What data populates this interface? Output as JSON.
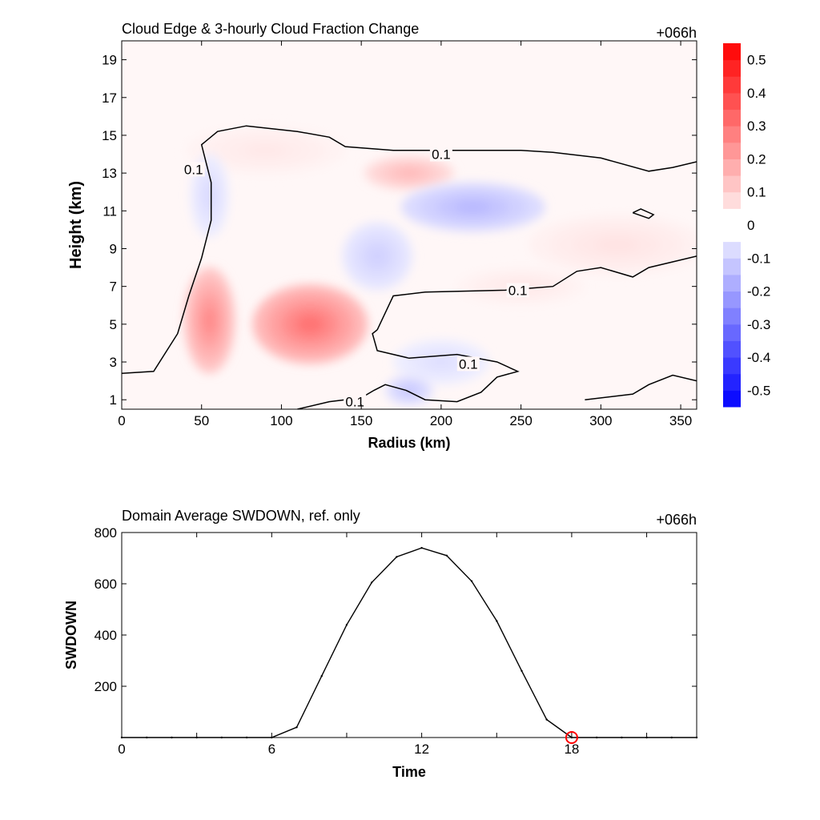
{
  "chart_data": [
    {
      "type": "heatmap",
      "title": "Cloud Edge & 3-hourly Cloud Fraction Change",
      "time_label": "+066h",
      "xlabel": "Radius (km)",
      "ylabel": "Height (km)",
      "xlim": [
        0,
        360
      ],
      "ylim": [
        0.5,
        20
      ],
      "x_ticks": [
        0,
        50,
        100,
        150,
        200,
        250,
        300,
        350
      ],
      "y_ticks": [
        1,
        3,
        5,
        7,
        9,
        11,
        13,
        15,
        17,
        19
      ],
      "colorbar": {
        "levels": [
          -0.55,
          -0.5,
          -0.45,
          -0.4,
          -0.35,
          -0.3,
          -0.25,
          -0.2,
          -0.15,
          -0.1,
          -0.05,
          0.05,
          0.1,
          0.15,
          0.2,
          0.25,
          0.3,
          0.35,
          0.4,
          0.45,
          0.5,
          0.55
        ],
        "tick_labels": [
          "-0.5",
          "-0.4",
          "-0.3",
          "-0.2",
          "-0.1",
          "0",
          "0.1",
          "0.2",
          "0.3",
          "0.4",
          "0.5"
        ],
        "tick_values": [
          -0.5,
          -0.4,
          -0.3,
          -0.2,
          -0.1,
          0,
          0.1,
          0.2,
          0.3,
          0.4,
          0.5
        ],
        "negative_color": "#0000ff",
        "positive_color": "#ff0000",
        "zero_color": "#ffffff"
      },
      "features": [
        {
          "kind": "positive",
          "x": 55,
          "y": 5.2,
          "rx": 16,
          "ry": 2.8,
          "value": 0.25
        },
        {
          "kind": "positive",
          "x": 118,
          "y": 5.0,
          "rx": 36,
          "ry": 2.1,
          "value": 0.3
        },
        {
          "kind": "positive",
          "x": 180,
          "y": 13.0,
          "rx": 28,
          "ry": 0.9,
          "value": 0.15
        },
        {
          "kind": "positive",
          "x": 90,
          "y": 14.2,
          "rx": 50,
          "ry": 1.3,
          "value": 0.05
        },
        {
          "kind": "positive",
          "x": 310,
          "y": 9.2,
          "rx": 55,
          "ry": 1.6,
          "value": 0.06
        },
        {
          "kind": "positive",
          "x": 250,
          "y": 7.0,
          "rx": 40,
          "ry": 1.0,
          "value": 0.05
        },
        {
          "kind": "negative",
          "x": 220,
          "y": 11.2,
          "rx": 45,
          "ry": 1.3,
          "value": -0.15
        },
        {
          "kind": "negative",
          "x": 160,
          "y": 8.6,
          "rx": 22,
          "ry": 1.8,
          "value": -0.1
        },
        {
          "kind": "negative",
          "x": 55,
          "y": 11.8,
          "rx": 12,
          "ry": 2.2,
          "value": -0.08
        },
        {
          "kind": "negative",
          "x": 200,
          "y": 3.0,
          "rx": 30,
          "ry": 1.2,
          "value": -0.07
        },
        {
          "kind": "negative",
          "x": 180,
          "y": 1.5,
          "rx": 15,
          "ry": 0.8,
          "value": -0.12
        }
      ],
      "contour_level": "0.1",
      "contours": [
        [
          [
            0,
            2.4
          ],
          [
            20,
            2.5
          ],
          [
            35,
            4.5
          ],
          [
            42,
            6.5
          ],
          [
            50,
            8.5
          ],
          [
            56,
            10.5
          ],
          [
            56,
            12.5
          ],
          [
            50,
            14.5
          ],
          [
            60,
            15.2
          ],
          [
            78,
            15.5
          ],
          [
            110,
            15.2
          ],
          [
            130,
            14.9
          ],
          [
            140,
            14.4
          ],
          [
            170,
            14.2
          ],
          [
            220,
            14.2
          ],
          [
            250,
            14.2
          ],
          [
            270,
            14.1
          ],
          [
            300,
            13.8
          ],
          [
            330,
            13.1
          ],
          [
            345,
            13.3
          ],
          [
            360,
            13.6
          ]
        ],
        [
          [
            160,
            4.7
          ],
          [
            170,
            6.5
          ],
          [
            190,
            6.7
          ],
          [
            240,
            6.8
          ],
          [
            270,
            7.0
          ],
          [
            285,
            7.8
          ],
          [
            300,
            8.0
          ],
          [
            320,
            7.5
          ],
          [
            330,
            8.0
          ],
          [
            345,
            8.3
          ],
          [
            360,
            8.6
          ]
        ],
        [
          [
            110,
            0.5
          ],
          [
            130,
            0.9
          ],
          [
            150,
            1.1
          ],
          [
            158,
            1.5
          ],
          [
            165,
            1.8
          ],
          [
            178,
            1.5
          ],
          [
            190,
            1.0
          ],
          [
            210,
            0.9
          ],
          [
            225,
            1.4
          ],
          [
            235,
            2.2
          ],
          [
            248,
            2.5
          ],
          [
            235,
            3.0
          ],
          [
            210,
            3.4
          ],
          [
            180,
            3.2
          ],
          [
            160,
            3.6
          ],
          [
            157,
            4.5
          ],
          [
            160,
            4.7
          ]
        ],
        [
          [
            290,
            1.0
          ],
          [
            320,
            1.3
          ],
          [
            330,
            1.8
          ],
          [
            345,
            2.3
          ],
          [
            360,
            2.0
          ]
        ],
        [
          [
            320,
            10.9
          ],
          [
            330,
            10.6
          ],
          [
            333,
            10.8
          ],
          [
            325,
            11.1
          ],
          [
            320,
            10.9
          ]
        ]
      ],
      "contour_labels": [
        {
          "text": "0.1",
          "x": 200,
          "y": 14.0
        },
        {
          "text": "0.1",
          "x": 248,
          "y": 6.8
        },
        {
          "text": "0.1",
          "x": 217,
          "y": 2.9
        },
        {
          "text": "0.1",
          "x": 146,
          "y": 0.9
        },
        {
          "text": "0.1",
          "x": 45,
          "y": 13.2
        }
      ]
    },
    {
      "type": "line",
      "title": "Domain Average SWDOWN, ref. only",
      "time_label": "+066h",
      "xlabel": "Time",
      "ylabel": "SWDOWN",
      "xlim": [
        0,
        23
      ],
      "ylim": [
        0,
        800
      ],
      "x_ticks": [
        0,
        6,
        12,
        18
      ],
      "y_ticks": [
        200,
        400,
        600,
        800
      ],
      "x": [
        0,
        1,
        2,
        3,
        4,
        5,
        6,
        7,
        8,
        9,
        10,
        11,
        12,
        13,
        14,
        15,
        16,
        17,
        18,
        19,
        20,
        21,
        22,
        23
      ],
      "values": [
        0,
        0,
        0,
        0,
        0,
        0,
        0,
        40,
        240,
        440,
        605,
        705,
        740,
        710,
        610,
        455,
        260,
        70,
        0,
        0,
        0,
        0,
        0,
        0
      ],
      "marker": {
        "x": 18,
        "y": 0,
        "color": "#ff0000"
      }
    }
  ]
}
